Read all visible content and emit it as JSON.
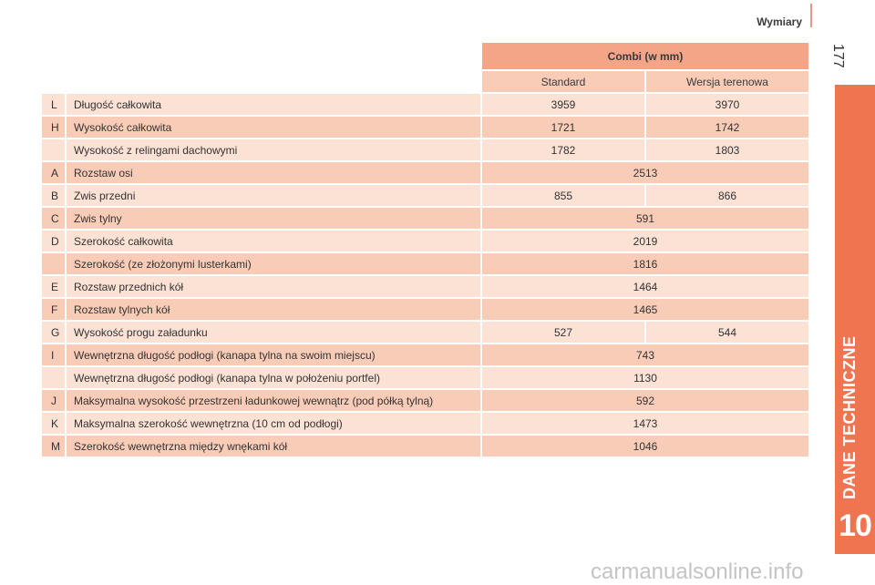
{
  "header": {
    "title": "Wymiary",
    "page_number": "177"
  },
  "side_tab": {
    "label": "DANE TECHNICZNE",
    "chapter": "10"
  },
  "watermark": "carmanualsonline.info",
  "colors": {
    "accent": "#ee7550",
    "header_cell": "#f4a587",
    "row_dark": "#f9ccb8",
    "row_light": "#fce1d5"
  },
  "table": {
    "group_header": "Combi (w mm)",
    "sub_headers": [
      "Standard",
      "Wersja terenowa"
    ],
    "rows": [
      {
        "code": "L",
        "label": "Długość całkowita",
        "standard": "3959",
        "terrain": "3970"
      },
      {
        "code": "H",
        "label": "Wysokość całkowita",
        "standard": "1721",
        "terrain": "1742"
      },
      {
        "code": "",
        "label": "Wysokość z relingami dachowymi",
        "standard": "1782",
        "terrain": "1803"
      },
      {
        "code": "A",
        "label": "Rozstaw osi",
        "value": "2513"
      },
      {
        "code": "B",
        "label": "Zwis przedni",
        "standard": "855",
        "terrain": "866"
      },
      {
        "code": "C",
        "label": "Zwis tylny",
        "value": "591"
      },
      {
        "code": "D",
        "label": "Szerokość całkowita",
        "value": "2019"
      },
      {
        "code": "",
        "label": "Szerokość (ze złożonymi lusterkami)",
        "value": "1816"
      },
      {
        "code": "E",
        "label": "Rozstaw przednich kół",
        "value": "1464"
      },
      {
        "code": "F",
        "label": "Rozstaw tylnych kół",
        "value": "1465"
      },
      {
        "code": "G",
        "label": "Wysokość progu załadunku",
        "standard": "527",
        "terrain": "544"
      },
      {
        "code": "I",
        "label": "Wewnętrzna długość podłogi (kanapa tylna na swoim miejscu)",
        "value": "743"
      },
      {
        "code": "",
        "label": "Wewnętrzna długość podłogi (kanapa tylna w położeniu portfel)",
        "value": "1130"
      },
      {
        "code": "J",
        "label": "Maksymalna wysokość przestrzeni ładunkowej wewnątrz (pod półką tylną)",
        "value": "592"
      },
      {
        "code": "K",
        "label": "Maksymalna szerokość wewnętrzna (10 cm od podłogi)",
        "value": "1473"
      },
      {
        "code": "M",
        "label": "Szerokość wewnętrzna między wnękami kół",
        "value": "1046"
      }
    ]
  }
}
